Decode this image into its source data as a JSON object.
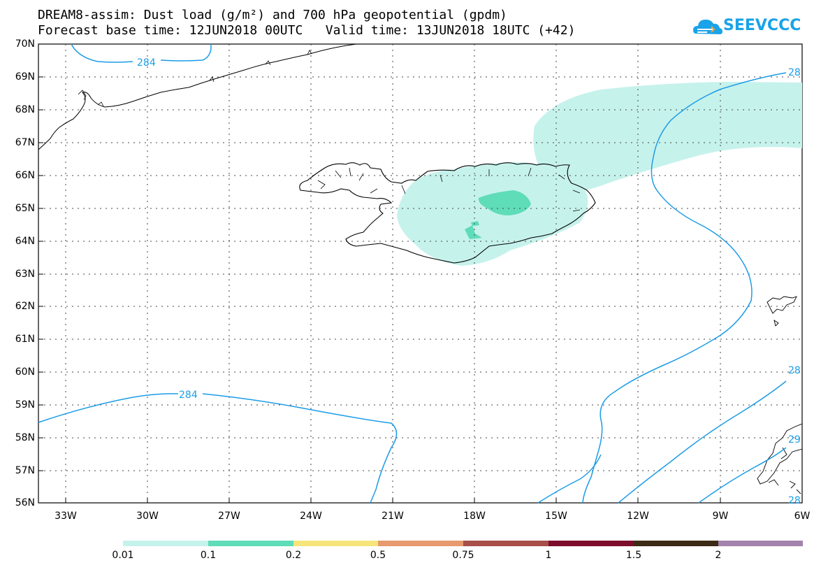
{
  "title": {
    "line1": "DREAM8-assim: Dust load (g/m²) and 700 hPa geopotential (gpdm)",
    "line2": "Forecast base time: 12JUN2018 00UTC   Valid time: 13JUN2018 18UTC (+42)"
  },
  "logo": {
    "text": "SEEVCCC",
    "icon": "cloud-icon",
    "color": "#1aa3e8"
  },
  "axes": {
    "lat_labels": [
      "70N",
      "69N",
      "68N",
      "67N",
      "66N",
      "65N",
      "64N",
      "63N",
      "62N",
      "61N",
      "60N",
      "59N",
      "58N",
      "57N",
      "56N"
    ],
    "lon_labels": [
      "33W",
      "30W",
      "27W",
      "24W",
      "21W",
      "18W",
      "15W",
      "12W",
      "9W",
      "6W"
    ]
  },
  "contours": {
    "color": "#1c9ce6",
    "labels": [
      "284",
      "284",
      "28",
      "28",
      "29",
      "28"
    ]
  },
  "colorbar": {
    "levels": [
      "0.01",
      "0.1",
      "0.2",
      "0.5",
      "0.75",
      "1",
      "1.5",
      "2"
    ],
    "colors": [
      "#c6f2ec",
      "#5fdcb8",
      "#f6e57a",
      "#e79a6e",
      "#a74f4a",
      "#7c0d2c",
      "#3d2b15",
      "#a183ae"
    ]
  },
  "dust_fill_colors": {
    "light": "#c6f2ec",
    "medium": "#5fdcb8"
  }
}
